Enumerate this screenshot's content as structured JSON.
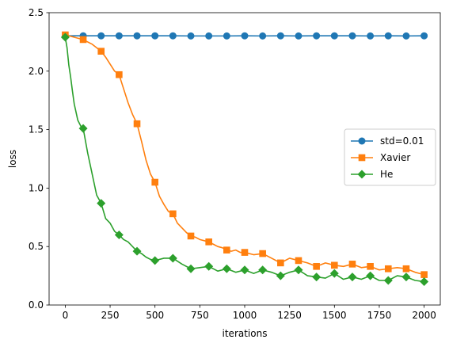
{
  "chart_data": {
    "type": "line",
    "title": "",
    "xlabel": "iterations",
    "ylabel": "loss",
    "xlim": [
      -90,
      2090
    ],
    "ylim": [
      0.0,
      2.5
    ],
    "xticks": [
      "0",
      "250",
      "500",
      "750",
      "1000",
      "1250",
      "1500",
      "1750",
      "2000"
    ],
    "xtick_values": [
      0,
      250,
      500,
      750,
      1000,
      1250,
      1500,
      1750,
      2000
    ],
    "yticks": [
      "0.0",
      "0.5",
      "1.0",
      "1.5",
      "2.0",
      "2.5"
    ],
    "ytick_values": [
      0.0,
      0.5,
      1.0,
      1.5,
      2.0,
      2.5
    ],
    "grid": false,
    "legend_position": "center-right",
    "series": [
      {
        "name": "std=0.01",
        "color": "#1f77b4",
        "marker": "circle",
        "marker_every": 100,
        "x": [
          0,
          100,
          200,
          300,
          400,
          500,
          600,
          700,
          800,
          900,
          1000,
          1100,
          1200,
          1300,
          1400,
          1500,
          1600,
          1700,
          1800,
          1900,
          2000
        ],
        "values": [
          2.302,
          2.302,
          2.302,
          2.302,
          2.302,
          2.302,
          2.302,
          2.301,
          2.301,
          2.301,
          2.302,
          2.301,
          2.302,
          2.301,
          2.302,
          2.302,
          2.302,
          2.301,
          2.302,
          2.301,
          2.302
        ]
      },
      {
        "name": "Xavier",
        "color": "#ff7f0e",
        "marker": "square",
        "marker_every": 100,
        "x": [
          0,
          25,
          50,
          75,
          100,
          125,
          150,
          175,
          200,
          225,
          250,
          275,
          300,
          325,
          350,
          375,
          400,
          425,
          450,
          475,
          500,
          525,
          550,
          575,
          600,
          625,
          650,
          675,
          700,
          725,
          750,
          775,
          800,
          825,
          850,
          875,
          900,
          925,
          950,
          975,
          1000,
          1050,
          1100,
          1150,
          1200,
          1250,
          1300,
          1350,
          1400,
          1450,
          1500,
          1550,
          1600,
          1650,
          1700,
          1750,
          1800,
          1850,
          1900,
          1950,
          2000
        ],
        "values": [
          2.31,
          2.3,
          2.29,
          2.28,
          2.27,
          2.25,
          2.23,
          2.2,
          2.17,
          2.12,
          2.06,
          2.0,
          1.97,
          1.85,
          1.73,
          1.63,
          1.55,
          1.4,
          1.24,
          1.12,
          1.05,
          0.93,
          0.86,
          0.8,
          0.78,
          0.7,
          0.66,
          0.62,
          0.59,
          0.58,
          0.56,
          0.55,
          0.54,
          0.52,
          0.5,
          0.49,
          0.47,
          0.46,
          0.47,
          0.45,
          0.45,
          0.43,
          0.44,
          0.4,
          0.36,
          0.4,
          0.38,
          0.36,
          0.33,
          0.36,
          0.34,
          0.33,
          0.35,
          0.32,
          0.33,
          0.3,
          0.31,
          0.32,
          0.31,
          0.28,
          0.26
        ]
      },
      {
        "name": "He",
        "color": "#2ca02c",
        "marker": "diamond",
        "marker_every": 100,
        "x": [
          0,
          10,
          20,
          30,
          40,
          50,
          60,
          70,
          80,
          90,
          100,
          125,
          150,
          175,
          200,
          225,
          250,
          275,
          300,
          325,
          350,
          375,
          400,
          425,
          450,
          475,
          500,
          550,
          600,
          650,
          700,
          750,
          800,
          850,
          900,
          950,
          1000,
          1050,
          1100,
          1150,
          1200,
          1250,
          1300,
          1350,
          1400,
          1450,
          1500,
          1550,
          1600,
          1650,
          1700,
          1750,
          1800,
          1850,
          1900,
          1950,
          2000
        ],
        "values": [
          2.29,
          2.2,
          2.05,
          1.95,
          1.83,
          1.72,
          1.65,
          1.58,
          1.55,
          1.52,
          1.51,
          1.3,
          1.12,
          0.94,
          0.87,
          0.74,
          0.7,
          0.63,
          0.6,
          0.56,
          0.54,
          0.5,
          0.46,
          0.44,
          0.41,
          0.39,
          0.38,
          0.4,
          0.4,
          0.35,
          0.31,
          0.32,
          0.33,
          0.29,
          0.31,
          0.28,
          0.3,
          0.27,
          0.3,
          0.28,
          0.25,
          0.28,
          0.3,
          0.25,
          0.24,
          0.23,
          0.27,
          0.22,
          0.24,
          0.22,
          0.25,
          0.21,
          0.21,
          0.25,
          0.24,
          0.21,
          0.2
        ]
      }
    ]
  }
}
